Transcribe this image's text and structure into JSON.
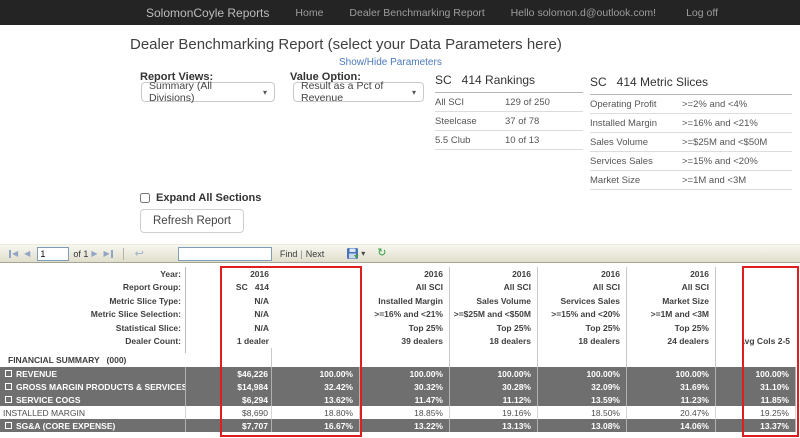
{
  "navbar": {
    "brand": "SolomonCoyle Reports",
    "home": "Home",
    "report_link": "Dealer Benchmarking Report",
    "greeting": "Hello solomon.d@outlook.com!",
    "logoff": "Log off"
  },
  "page": {
    "title": "Dealer Benchmarking Report (select your Data Parameters here)",
    "toggle_link": "Show/Hide Parameters"
  },
  "filters": {
    "report_views": {
      "label": "Report Views:",
      "selected": "Summary (All Divisions)"
    },
    "value_option": {
      "label": "Value Option:",
      "selected": "Result as a Pct of Revenue"
    }
  },
  "rankings": {
    "title": "SC   414 Rankings",
    "rows": [
      {
        "label": "All SCI",
        "value": "129 of 250"
      },
      {
        "label": "Steelcase",
        "value": "37 of 78"
      },
      {
        "label": "5.5 Club",
        "value": "10 of 13"
      }
    ]
  },
  "metric_slices": {
    "title": "SC   414 Metric Slices",
    "rows": [
      {
        "label": "Operating Profit",
        "value": ">=2% and <4%"
      },
      {
        "label": "Installed Margin",
        "value": ">=16% and <21%"
      },
      {
        "label": "Sales Volume",
        "value": ">=$25M and <$50M"
      },
      {
        "label": "Services Sales",
        "value": ">=15% and <20%"
      },
      {
        "label": "Market Size",
        "value": ">=1M and <3M"
      }
    ]
  },
  "controls": {
    "expand_all_label": "Expand All Sections",
    "expand_all_checked": false,
    "refresh_button": "Refresh Report"
  },
  "viewer_toolbar": {
    "page_value": "1",
    "of_label": "of 1",
    "find_label": "Find",
    "divider": "|",
    "next_label": "Next",
    "find_value": "",
    "icons": [
      "first-page",
      "previous-page",
      "next-page",
      "last-page",
      "back-to-parent",
      "export-save",
      "refresh-report"
    ]
  },
  "table": {
    "highlight_color": "#e01e1e",
    "header_rows": [
      {
        "label": "Year:",
        "col1": "2016",
        "cols": [
          "2016",
          "2016",
          "2016",
          "2016"
        ],
        "avg": ""
      },
      {
        "label": "Report Group:",
        "col1": "SC   414",
        "cols": [
          "All SCI",
          "All SCI",
          "All SCI",
          "All SCI"
        ],
        "avg": ""
      },
      {
        "label": "Metric Slice Type:",
        "col1": "N/A",
        "cols": [
          "Installed Margin",
          "Sales Volume",
          "Services Sales",
          "Market Size"
        ],
        "avg": ""
      },
      {
        "label": "Metric Slice Selection:",
        "col1": "N/A",
        "cols": [
          ">=16% and <21%",
          ">=$25M and <$50M",
          ">=15% and <20%",
          ">=1M and <3M"
        ],
        "avg": ""
      },
      {
        "label": "Statistical Slice:",
        "col1": "N/A",
        "cols": [
          "Top 25%",
          "Top 25%",
          "Top 25%",
          "Top 25%"
        ],
        "avg": ""
      },
      {
        "label": "Dealer Count:",
        "col1": "1 dealer",
        "cols": [
          "39 dealers",
          "18 dealers",
          "18 dealers",
          "24 dealers"
        ],
        "avg": "Avg Cols 2-5"
      }
    ],
    "section_header": "FINANCIAL SUMMARY   (000)",
    "data_rows": [
      {
        "label": "REVENUE",
        "expandable": true,
        "dark": true,
        "dollar": "$46,226",
        "pct": "100.00%",
        "cols": [
          "100.00%",
          "100.00%",
          "100.00%",
          "100.00%"
        ],
        "avg": "100.00%"
      },
      {
        "label": "GROSS MARGIN PRODUCTS & SERVICES",
        "expandable": true,
        "dark": true,
        "dollar": "$14,984",
        "pct": "32.42%",
        "cols": [
          "30.32%",
          "30.28%",
          "32.09%",
          "31.69%"
        ],
        "avg": "31.10%"
      },
      {
        "label": "SERVICE COGS",
        "expandable": true,
        "dark": true,
        "dollar": "$6,294",
        "pct": "13.62%",
        "cols": [
          "11.47%",
          "11.12%",
          "13.59%",
          "11.23%"
        ],
        "avg": "11.85%"
      },
      {
        "label": "INSTALLED MARGIN",
        "expandable": false,
        "dark": false,
        "dollar": "$8,690",
        "pct": "18.80%",
        "cols": [
          "18.85%",
          "19.16%",
          "18.50%",
          "20.47%"
        ],
        "avg": "19.25%"
      },
      {
        "label": "SG&A (CORE EXPENSE)",
        "expandable": true,
        "dark": true,
        "dollar": "$7,707",
        "pct": "16.67%",
        "cols": [
          "13.22%",
          "13.13%",
          "13.08%",
          "14.06%"
        ],
        "avg": "13.37%"
      }
    ]
  }
}
